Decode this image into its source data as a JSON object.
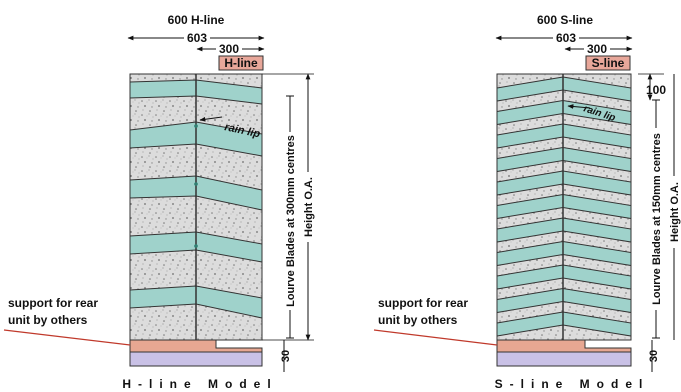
{
  "h_model": {
    "title": "600 H-line",
    "overall_width": "603",
    "half_width": "300",
    "tag": "H-line",
    "rain_lip": "rain lip",
    "blade_spacing": "Lourve Blades at 300mm centres",
    "height": "Height O.A.",
    "support_line1": "support for rear",
    "support_line2": "unit by others",
    "base_dim": "30",
    "caption": "H-line Model"
  },
  "s_model": {
    "title": "600 S-line",
    "overall_width": "603",
    "half_width": "300",
    "tag": "S-line",
    "top_dim": "100",
    "rain_lip": "rain lip",
    "blade_spacing": "Lourve Blades at 150mm centres",
    "height": "Height O.A.",
    "support_line1": "support for rear",
    "support_line2": "unit by others",
    "base_dim": "30",
    "caption": "S-line Model"
  },
  "colors": {
    "blade_fill": "#9fd2cb",
    "granite_base": "#d8d8d8",
    "tag_fill": "#e8a79a",
    "support_fill": "#e7a792",
    "slab_fill": "#c9c1e6",
    "outline": "#333333"
  }
}
